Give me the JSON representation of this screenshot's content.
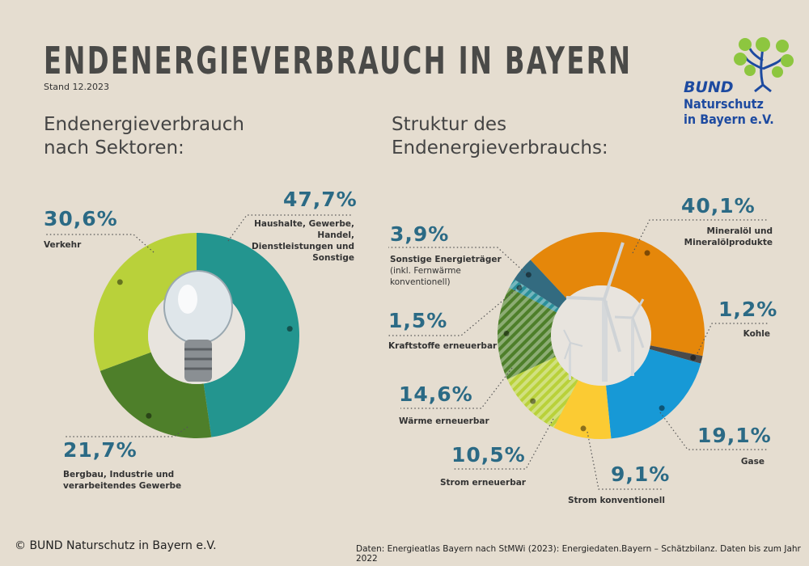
{
  "title": "ENDENERGIEVERBRAUCH IN BAYERN",
  "stand": "Stand 12.2023",
  "logo": {
    "bund": "BUND",
    "line1": "Naturschutz",
    "line2": "in Bayern e.V."
  },
  "footer": {
    "copyright": "© BUND Naturschutz in Bayern e.V.",
    "source": "Daten: Energieatlas Bayern nach StMWi (2023): Energiedaten.Bayern – Schätzbilanz. Daten bis zum Jahr 2022"
  },
  "chart_data": [
    {
      "type": "pie",
      "donut": true,
      "title": "Endenergieverbrauch nach Sektoren:",
      "slices": [
        {
          "pct": "47,7%",
          "value": 47.7,
          "label": "Haushalte, Gewerbe, Handel, Dienstleistungen und Sonstige",
          "color": "#23958f"
        },
        {
          "pct": "21,7%",
          "value": 21.7,
          "label": "Bergbau, Industrie und verarbeitendes Gewerbe",
          "color": "#4e7f2a"
        },
        {
          "pct": "30,6%",
          "value": 30.6,
          "label": "Verkehr",
          "color": "#b9d13a"
        }
      ]
    },
    {
      "type": "pie",
      "donut": true,
      "title": "Struktur des Endenergieverbrauchs:",
      "slices": [
        {
          "pct": "40,1%",
          "value": 40.1,
          "label": "Mineralöl und Mineralölprodukte",
          "color": "#e5870a"
        },
        {
          "pct": "1,2%",
          "value": 1.2,
          "label": "Kohle",
          "color": "#4a4a4a"
        },
        {
          "pct": "19,1%",
          "value": 19.1,
          "label": "Gase",
          "color": "#1799d6"
        },
        {
          "pct": "9,1%",
          "value": 9.1,
          "label": "Strom konventionell",
          "color": "#fbcb33"
        },
        {
          "pct": "10,5%",
          "value": 10.5,
          "label": "Strom erneuerbar",
          "color": "#b9d13a",
          "striped": true
        },
        {
          "pct": "14,6%",
          "value": 14.6,
          "label": "Wärme erneuerbar",
          "color": "#4e7f2a",
          "striped": true
        },
        {
          "pct": "1,5%",
          "value": 1.5,
          "label": "Kraftstoffe erneuerbar",
          "color": "#2a8f9a",
          "striped": true
        },
        {
          "pct": "3,9%",
          "value": 3.9,
          "label": "Sonstige Energieträger",
          "note": "(inkl. Fernwärme konventionell)",
          "color": "#336b80"
        }
      ]
    }
  ]
}
